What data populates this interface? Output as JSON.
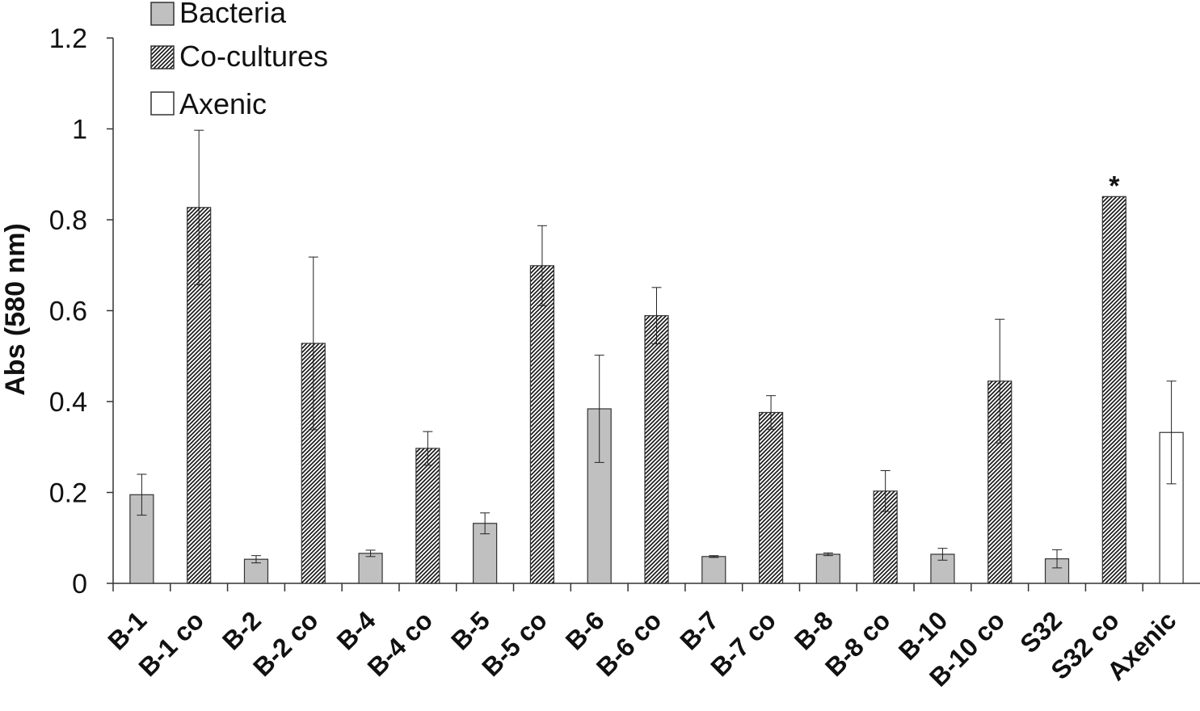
{
  "chart_data": {
    "type": "bar",
    "ylabel": "Abs (580 nm)",
    "ylim": [
      0,
      1.2
    ],
    "yticks": [
      0,
      0.2,
      0.4,
      0.6,
      0.8,
      1,
      1.2
    ],
    "ytick_labels": [
      "0",
      "0.2",
      "0.4",
      "0.6",
      "0.8",
      "1",
      "1.2"
    ],
    "legend_position": "top-left",
    "grid": false,
    "legend": [
      {
        "label": "Bacteria",
        "style": "gray"
      },
      {
        "label": "Co-cultures",
        "style": "hatched"
      },
      {
        "label": "Axenic",
        "style": "white"
      }
    ],
    "categories": [
      "B-1",
      "B-1 co",
      "B-2",
      "B-2 co",
      "B-4",
      "B-4 co",
      "B-5",
      "B-5 co",
      "B-6",
      "B-6 co",
      "B-7",
      "B-7 co",
      "B-8",
      "B-8 co",
      "B-10",
      "B-10 co",
      "S32",
      "S32 co",
      "Axenic"
    ],
    "groups": [
      "Bacteria",
      "Co-cultures",
      "Bacteria",
      "Co-cultures",
      "Bacteria",
      "Co-cultures",
      "Bacteria",
      "Co-cultures",
      "Bacteria",
      "Co-cultures",
      "Bacteria",
      "Co-cultures",
      "Bacteria",
      "Co-cultures",
      "Bacteria",
      "Co-cultures",
      "Bacteria",
      "Co-cultures",
      "Axenic"
    ],
    "values": [
      0.195,
      0.827,
      0.053,
      0.528,
      0.066,
      0.297,
      0.132,
      0.699,
      0.384,
      0.589,
      0.059,
      0.376,
      0.064,
      0.203,
      0.064,
      0.445,
      0.054,
      0.851,
      0.332
    ],
    "errors": [
      0.045,
      0.17,
      0.008,
      0.19,
      0.007,
      0.037,
      0.023,
      0.088,
      0.118,
      0.062,
      0.002,
      0.037,
      0.003,
      0.045,
      0.013,
      0.136,
      0.02,
      0,
      0.113
    ],
    "annotations": [
      {
        "category": "S32 co",
        "text": "*"
      }
    ],
    "colors": {
      "bacteria": "#c0c0c0",
      "axenic": "#ffffff",
      "hatch": "#111111",
      "axis": "#333333"
    }
  }
}
